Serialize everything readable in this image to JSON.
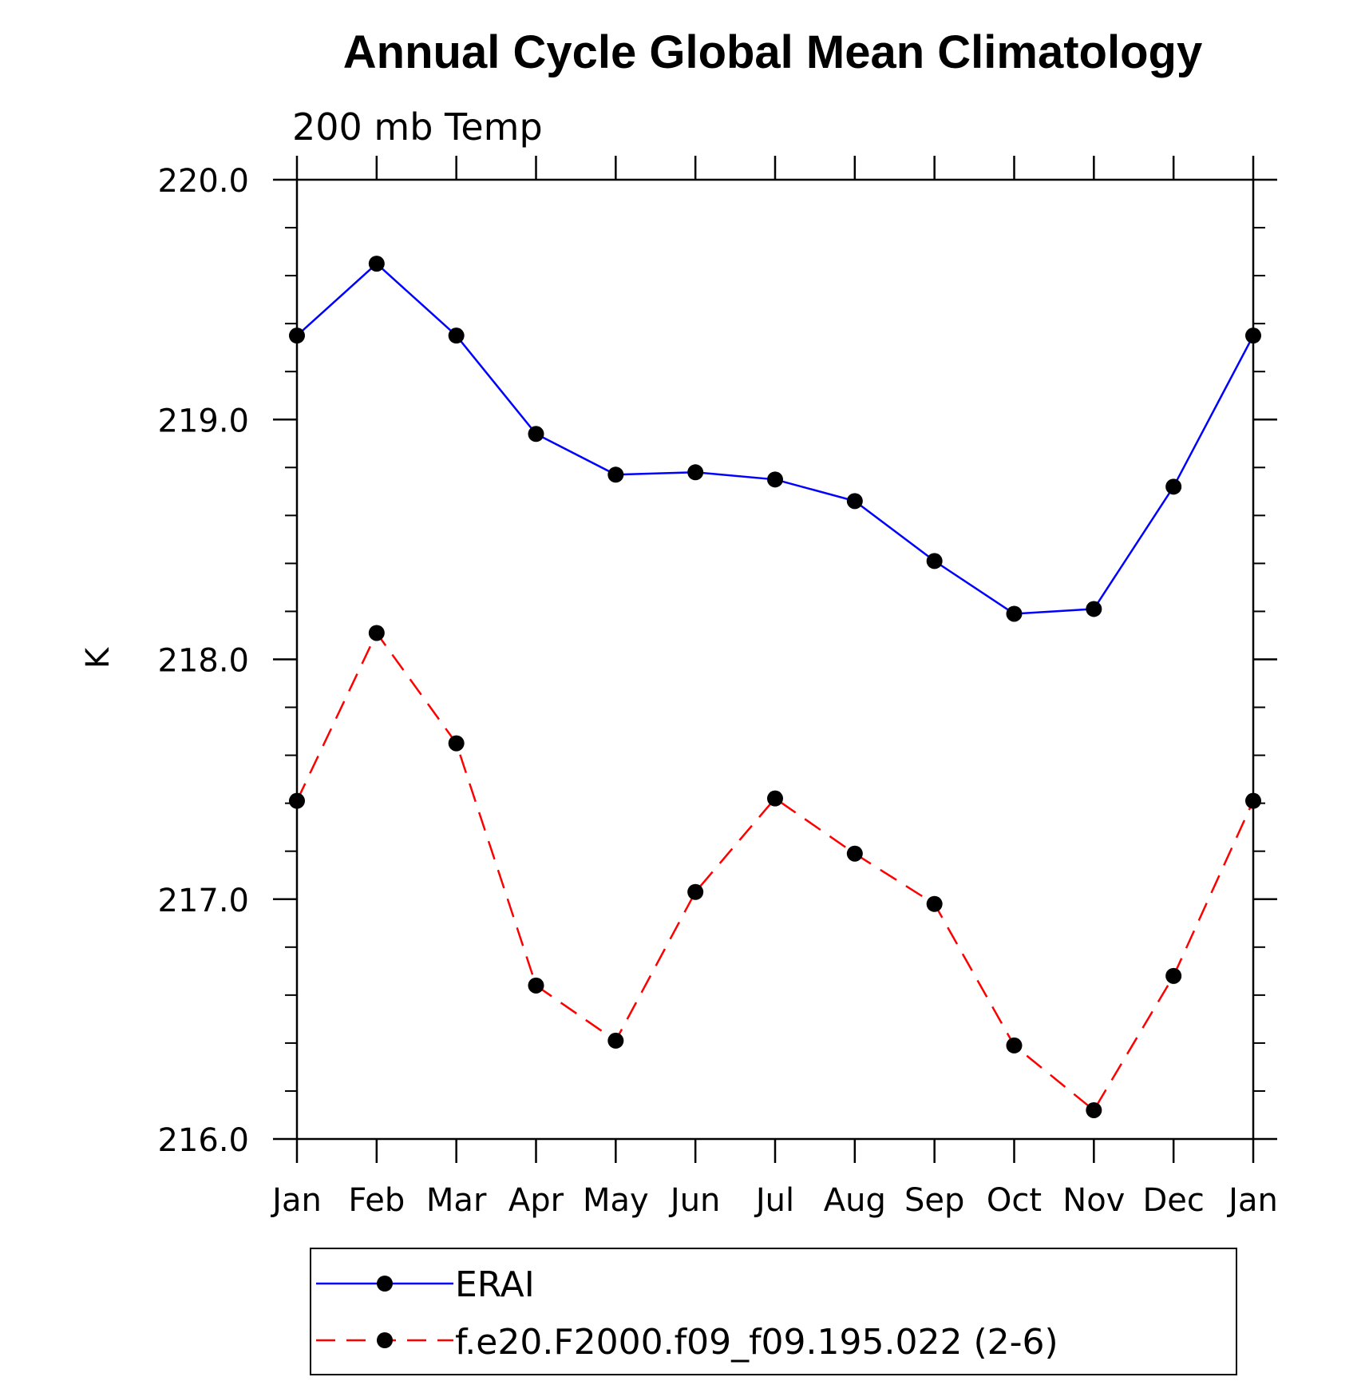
{
  "chart_data": {
    "type": "line",
    "title": "Annual Cycle Global Mean Climatology",
    "subtitle": "200 mb Temp",
    "xlabel": "",
    "ylabel": "K",
    "categories": [
      "Jan",
      "Feb",
      "Mar",
      "Apr",
      "May",
      "Jun",
      "Jul",
      "Aug",
      "Sep",
      "Oct",
      "Nov",
      "Dec",
      "Jan"
    ],
    "ylim": [
      216.0,
      220.0
    ],
    "yticks": [
      "216.0",
      "217.0",
      "218.0",
      "219.0",
      "220.0"
    ],
    "grid": false,
    "legend_position": "bottom",
    "series": [
      {
        "name": "ERAI",
        "color": "#0000ff",
        "dash": "solid",
        "marker": "circle",
        "values": [
          219.35,
          219.65,
          219.35,
          218.94,
          218.77,
          218.78,
          218.75,
          218.66,
          218.41,
          218.19,
          218.21,
          218.72,
          219.35
        ]
      },
      {
        "name": "f.e20.F2000.f09_f09.195.022 (2-6)",
        "color": "#ff0000",
        "dash": "dashed",
        "marker": "circle",
        "values": [
          217.41,
          218.11,
          217.65,
          216.64,
          216.41,
          217.03,
          217.42,
          217.19,
          216.98,
          216.39,
          216.12,
          216.68,
          217.41
        ]
      }
    ]
  }
}
